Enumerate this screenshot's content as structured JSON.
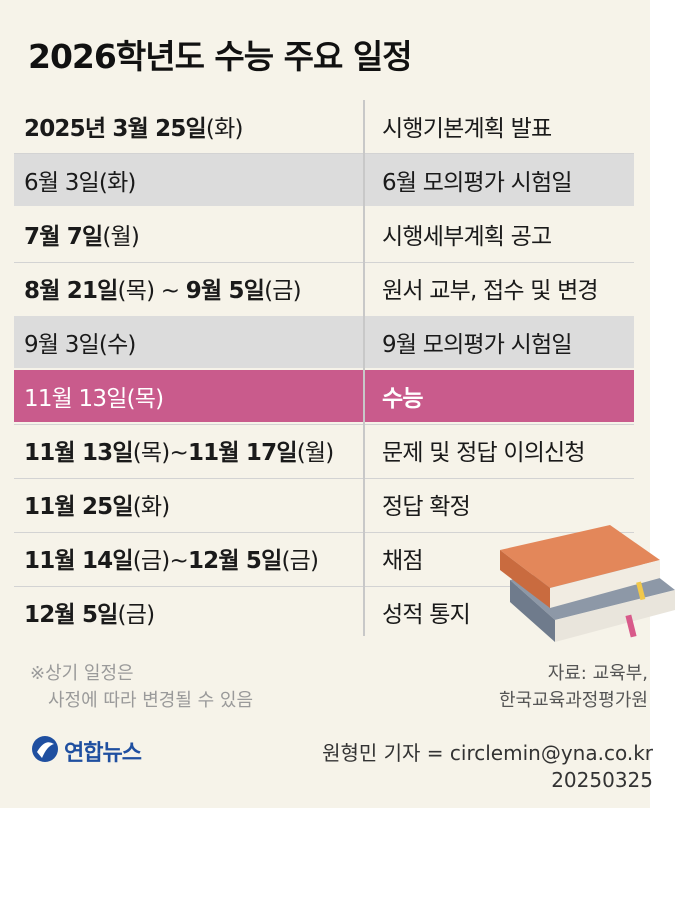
{
  "title": "2026학년도 수능 주요 일정",
  "rows": [
    {
      "date_bold": "2025년 3월 25일",
      "date_rest": "(화)",
      "event": "시행기본계획 발표",
      "style": "plain"
    },
    {
      "date_bold": "",
      "date_rest": "6월 3일(화)",
      "event": "6월 모의평가 시험일",
      "style": "grey"
    },
    {
      "date_bold": "7월 7일",
      "date_rest": "(월)",
      "event": "시행세부계획 공고",
      "style": "plain"
    },
    {
      "date_bold": "8월 21일",
      "date_rest": "(목) ~ ",
      "date_bold2": "9월 5일",
      "date_rest2": "(금)",
      "event": "원서 교부, 접수 및 변경",
      "style": "plain"
    },
    {
      "date_bold": "",
      "date_rest": "9월 3일(수)",
      "event": "9월 모의평가 시험일",
      "style": "grey"
    },
    {
      "date_bold": "",
      "date_rest": "11월 13일(목)",
      "event": "수능",
      "style": "highlight"
    },
    {
      "date_bold": "11월 13일",
      "date_rest": "(목)~",
      "date_bold2": "11월 17일",
      "date_rest2": "(월)",
      "event": "문제 및 정답 이의신청",
      "style": "plain"
    },
    {
      "date_bold": "11월 25일",
      "date_rest": "(화)",
      "event": "정답 확정",
      "style": "plain"
    },
    {
      "date_bold": "11월 14일",
      "date_rest": "(금)~",
      "date_bold2": "12월 5일",
      "date_rest2": "(금)",
      "event": "채점",
      "style": "plain"
    },
    {
      "date_bold": "12월 5일",
      "date_rest": "(금)",
      "event": "성적 통지",
      "style": "plain"
    }
  ],
  "note": [
    "※상기 일정은",
    "사정에 따라 변경될 수 있음"
  ],
  "source": [
    "자료: 교육부,",
    "한국교육과정평가원"
  ],
  "logo_text": "연합뉴스",
  "credit": [
    "원형민 기자 = circlemin@yna.co.kr",
    "20250325"
  ],
  "colors": {
    "background": "#f6f3e9",
    "grey_row": "#dcdcdc",
    "highlight_row": "#c95b8c",
    "logo_blue": "#1f4fa0"
  },
  "icons": [
    "books-illustration",
    "yonhap-logo-icon"
  ]
}
